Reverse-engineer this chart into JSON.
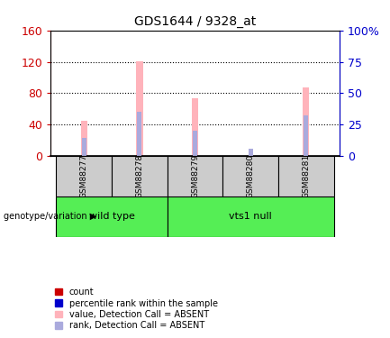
{
  "title": "GDS1644 / 9328_at",
  "samples": [
    "GSM88277",
    "GSM88278",
    "GSM88279",
    "GSM88280",
    "GSM88281"
  ],
  "bar_pink_heights": [
    45,
    121,
    74,
    0,
    87
  ],
  "bar_blue_heights": [
    14,
    35,
    20,
    6,
    32
  ],
  "pink_color": "#ffb3bb",
  "blue_color": "#aaaadd",
  "left_ylim": [
    0,
    160
  ],
  "right_ylim": [
    0,
    100
  ],
  "left_yticks": [
    0,
    40,
    80,
    120,
    160
  ],
  "right_yticks": [
    0,
    25,
    50,
    75,
    100
  ],
  "right_yticklabels": [
    "0",
    "25",
    "50",
    "75",
    "100%"
  ],
  "left_ycolor": "#cc0000",
  "right_ycolor": "#0000cc",
  "legend_items": [
    {
      "label": "count",
      "color": "#cc0000"
    },
    {
      "label": "percentile rank within the sample",
      "color": "#0000cc"
    },
    {
      "label": "value, Detection Call = ABSENT",
      "color": "#ffb3bb"
    },
    {
      "label": "rank, Detection Call = ABSENT",
      "color": "#aaaadd"
    }
  ],
  "group_label_text": "genotype/variation",
  "group_names": [
    "wild type",
    "vts1 null"
  ],
  "group_bg_color": "#55ee55",
  "sample_box_color": "#cccccc",
  "bar_width": 0.12,
  "blue_bar_width": 0.08
}
